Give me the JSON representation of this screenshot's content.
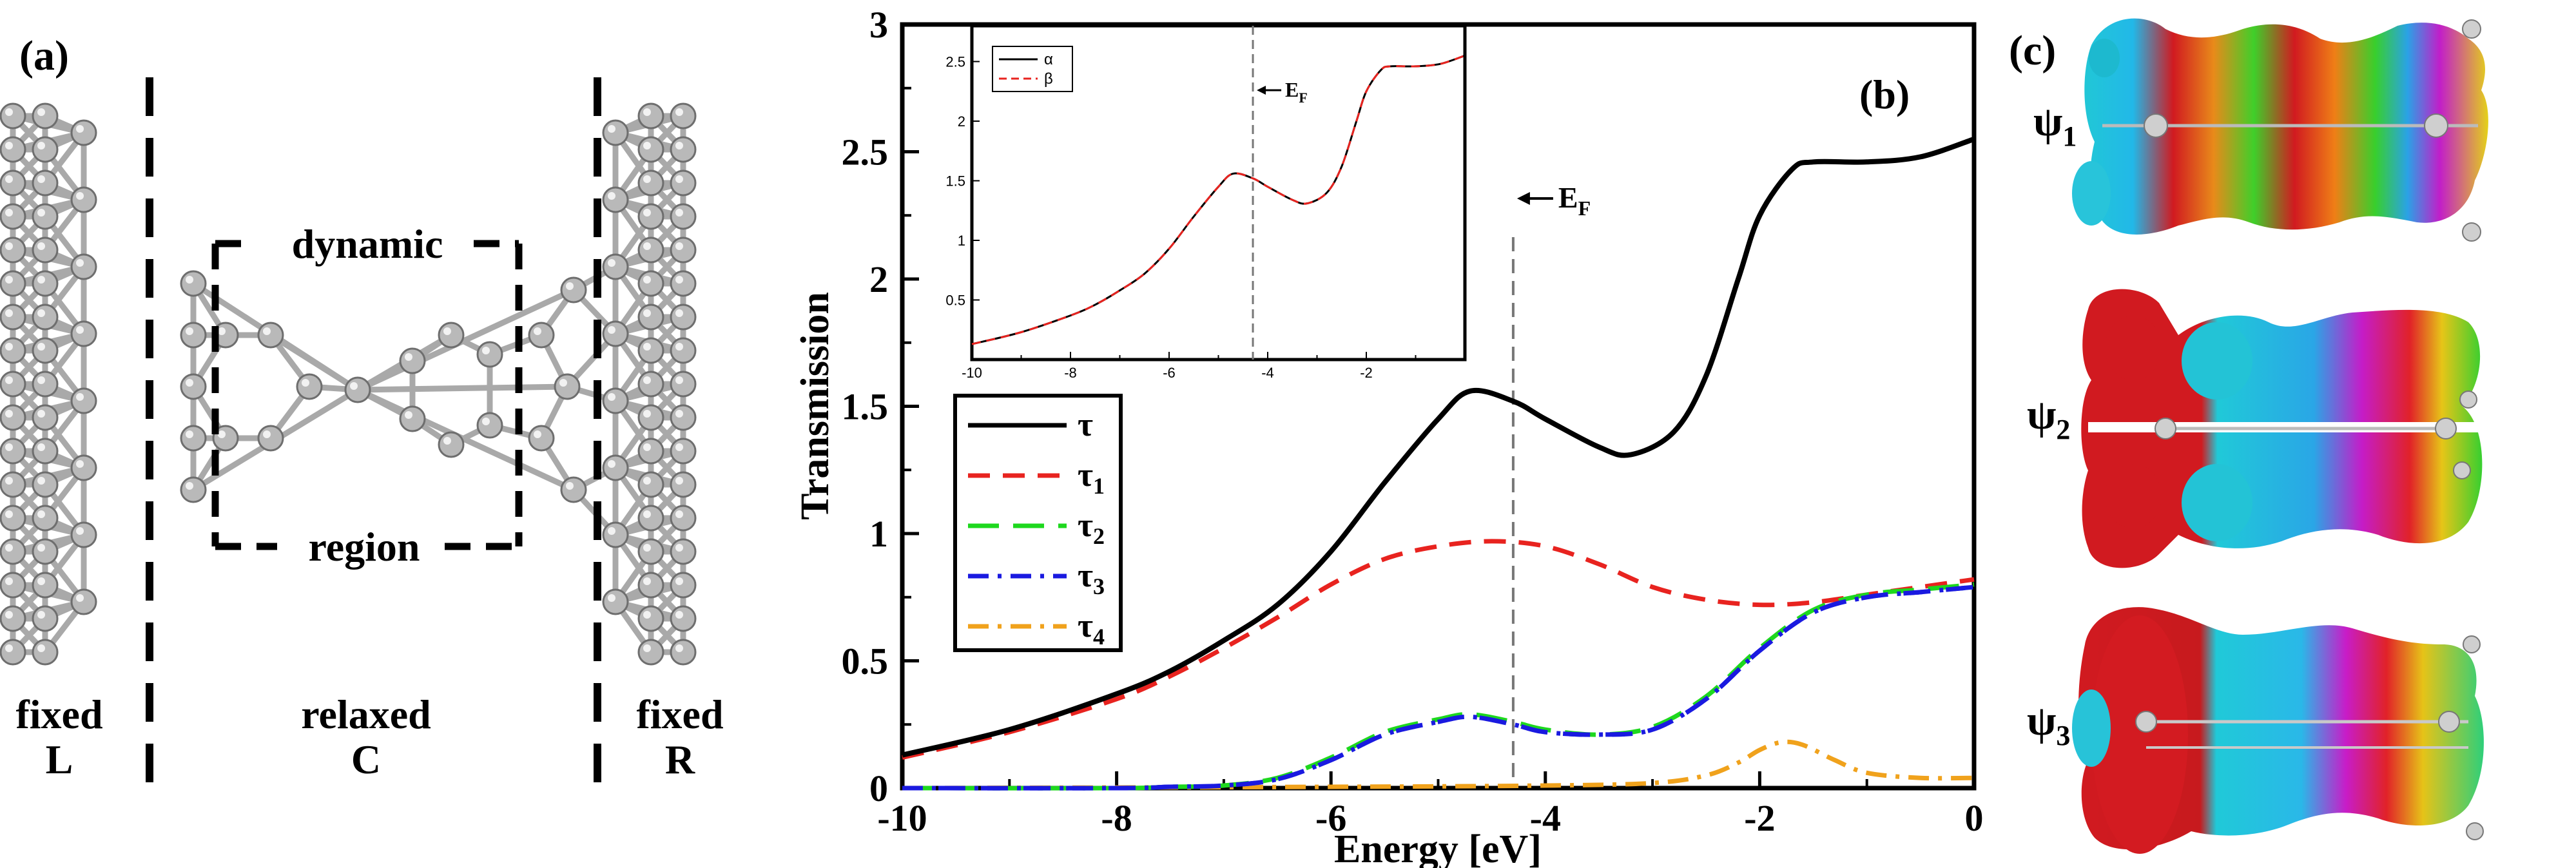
{
  "panel_a": {
    "label": "(a)",
    "region_top": "dynamic",
    "region_bottom": "region",
    "fixed_left": [
      "fixed",
      "L"
    ],
    "relaxed": [
      "relaxed",
      "C"
    ],
    "fixed_right": [
      "fixed",
      "R"
    ]
  },
  "panel_c": {
    "label": "(c)",
    "orbitals": [
      {
        "sym": "ψ",
        "sub": "1"
      },
      {
        "sym": "ψ",
        "sub": "2"
      },
      {
        "sym": "ψ",
        "sub": "3"
      }
    ]
  },
  "colors": {
    "tau": "#000000",
    "tau1": "#e8231f",
    "tau2": "#1ed81e",
    "tau3": "#1a1ae0",
    "tau4": "#f0a21c",
    "beta": "#e8231f",
    "atom": "#b9b9b9"
  },
  "chart_data": [
    {
      "type": "line",
      "panel_label": "(b)",
      "xlabel": "Energy [eV]",
      "ylabel": "Transmission",
      "xlim": [
        -10,
        0
      ],
      "ylim": [
        0,
        3
      ],
      "xticks": [
        "-10",
        "-8",
        "-6",
        "-4",
        "-2",
        "0"
      ],
      "yticks": [
        "0",
        "0.5",
        "1",
        "1.5",
        "2",
        "2.5",
        "3"
      ],
      "fermi_energy": -4.3,
      "annotation": {
        "text": "E",
        "sub": "F"
      },
      "legend_position": "lower-left",
      "series": [
        {
          "name": "τ",
          "sub": "",
          "style": "solid",
          "x": [
            -10,
            -9,
            -8,
            -7.5,
            -7,
            -6.5,
            -6,
            -5.5,
            -5,
            -4.7,
            -4.3,
            -4,
            -3.5,
            -3.2,
            -2.8,
            -2.5,
            -2.2,
            -2,
            -1.7,
            -1.5,
            -1,
            -0.5,
            0
          ],
          "y": [
            0.13,
            0.23,
            0.37,
            0.46,
            0.58,
            0.72,
            0.93,
            1.2,
            1.45,
            1.56,
            1.52,
            1.45,
            1.34,
            1.31,
            1.4,
            1.62,
            2.0,
            2.25,
            2.43,
            2.46,
            2.46,
            2.48,
            2.55
          ]
        },
        {
          "name": "τ",
          "sub": "1",
          "style": "dashed",
          "x": [
            -10,
            -9,
            -8,
            -7.5,
            -7,
            -6.5,
            -6,
            -5.5,
            -5,
            -4.5,
            -4,
            -3.5,
            -3,
            -2.5,
            -2,
            -1.5,
            -1,
            -0.5,
            0
          ],
          "y": [
            0.12,
            0.22,
            0.35,
            0.44,
            0.55,
            0.67,
            0.8,
            0.9,
            0.95,
            0.97,
            0.95,
            0.88,
            0.79,
            0.74,
            0.72,
            0.73,
            0.76,
            0.79,
            0.82
          ]
        },
        {
          "name": "τ",
          "sub": "2",
          "style": "longdash",
          "x": [
            -10,
            -8,
            -7.5,
            -7,
            -6.5,
            -6,
            -5.5,
            -5,
            -4.7,
            -4.3,
            -4,
            -3.5,
            -3,
            -2.5,
            -2,
            -1.5,
            -1,
            -0.5,
            0
          ],
          "y": [
            0,
            0,
            0.005,
            0.01,
            0.04,
            0.12,
            0.22,
            0.27,
            0.29,
            0.26,
            0.23,
            0.21,
            0.24,
            0.36,
            0.55,
            0.7,
            0.76,
            0.78,
            0.8
          ]
        },
        {
          "name": "τ",
          "sub": "3",
          "style": "dashdot",
          "x": [
            -10,
            -8,
            -7.5,
            -7,
            -6.5,
            -6,
            -5.5,
            -5,
            -4.7,
            -4.3,
            -4,
            -3.5,
            -3,
            -2.5,
            -2,
            -1.5,
            -1,
            -0.5,
            0
          ],
          "y": [
            0,
            0,
            0.005,
            0.01,
            0.035,
            0.11,
            0.21,
            0.26,
            0.28,
            0.25,
            0.22,
            0.21,
            0.23,
            0.35,
            0.54,
            0.69,
            0.75,
            0.77,
            0.79
          ]
        },
        {
          "name": "τ",
          "sub": "4",
          "style": "dashdot",
          "x": [
            -10,
            -6,
            -4,
            -3,
            -2.5,
            -2.2,
            -2,
            -1.8,
            -1.6,
            -1.3,
            -1,
            -0.5,
            0
          ],
          "y": [
            0,
            0.005,
            0.01,
            0.02,
            0.05,
            0.1,
            0.15,
            0.18,
            0.17,
            0.11,
            0.06,
            0.04,
            0.04
          ]
        }
      ]
    },
    {
      "type": "line",
      "panel_label": "inset",
      "xlim": [
        -10,
        0
      ],
      "ylim": [
        0,
        2.8
      ],
      "xticks": [
        "-10",
        "-8",
        "-6",
        "-4",
        "-2"
      ],
      "yticks": [
        "0.5",
        "1",
        "1.5",
        "2",
        "2.5"
      ],
      "fermi_energy": -4.3,
      "annotation": {
        "text": "E",
        "sub": "F"
      },
      "legend_position": "top-left",
      "series": [
        {
          "name": "α",
          "style": "solid",
          "x": [
            -10,
            -9,
            -8,
            -7.5,
            -7,
            -6.5,
            -6,
            -5.5,
            -5,
            -4.7,
            -4.3,
            -4,
            -3.5,
            -3.2,
            -2.8,
            -2.5,
            -2.2,
            -2,
            -1.7,
            -1.5,
            -1,
            -0.5,
            0
          ],
          "y": [
            0.13,
            0.23,
            0.37,
            0.46,
            0.58,
            0.72,
            0.93,
            1.2,
            1.45,
            1.56,
            1.52,
            1.45,
            1.34,
            1.31,
            1.4,
            1.62,
            2.0,
            2.25,
            2.43,
            2.46,
            2.46,
            2.48,
            2.55
          ]
        },
        {
          "name": "β",
          "style": "dashed",
          "x": [
            -10,
            -9,
            -8,
            -7.5,
            -7,
            -6.5,
            -6,
            -5.5,
            -5,
            -4.7,
            -4.3,
            -4,
            -3.5,
            -3.2,
            -2.8,
            -2.5,
            -2.2,
            -2,
            -1.7,
            -1.5,
            -1,
            -0.5,
            0
          ],
          "y": [
            0.13,
            0.23,
            0.37,
            0.46,
            0.58,
            0.72,
            0.93,
            1.2,
            1.45,
            1.56,
            1.52,
            1.45,
            1.34,
            1.31,
            1.4,
            1.62,
            2.0,
            2.25,
            2.43,
            2.46,
            2.46,
            2.48,
            2.55
          ]
        }
      ]
    }
  ]
}
